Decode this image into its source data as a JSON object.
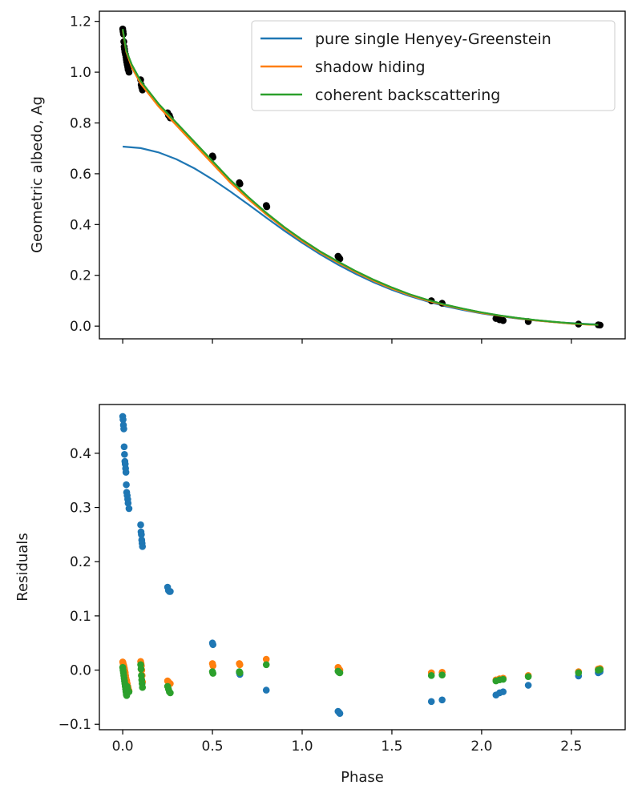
{
  "chart_data": [
    {
      "type": "line",
      "panel": "top",
      "title": "",
      "xlabel": "",
      "ylabel": "Geometric albedo, Ag",
      "xlim": [
        -0.13,
        2.8
      ],
      "ylim": [
        -0.05,
        1.24
      ],
      "xticks": [
        0.0,
        0.5,
        1.0,
        1.5,
        2.0,
        2.5
      ],
      "yticks": [
        0.0,
        0.2,
        0.4,
        0.6,
        0.8,
        1.0,
        1.2
      ],
      "ytick_labels": [
        "0.0",
        "0.2",
        "0.4",
        "0.6",
        "0.8",
        "1.0",
        "1.2"
      ],
      "legend_position": "top-right",
      "grid": false,
      "observations": {
        "color": "#000000",
        "x": [
          0.0,
          0.002,
          0.004,
          0.006,
          0.008,
          0.01,
          0.012,
          0.015,
          0.018,
          0.02,
          0.022,
          0.025,
          0.028,
          0.03,
          0.035,
          0.1,
          0.103,
          0.106,
          0.11,
          0.25,
          0.255,
          0.26,
          0.265,
          0.5,
          0.503,
          0.65,
          0.653,
          0.8,
          0.803,
          1.2,
          1.205,
          1.21,
          1.72,
          1.78,
          2.08,
          2.1,
          2.12,
          2.26,
          2.54,
          2.65,
          2.66
        ],
        "y": [
          1.17,
          1.16,
          1.15,
          1.12,
          1.1,
          1.09,
          1.08,
          1.07,
          1.06,
          1.05,
          1.04,
          1.03,
          1.02,
          1.01,
          1.0,
          0.97,
          0.95,
          0.94,
          0.93,
          0.84,
          0.83,
          0.83,
          0.82,
          0.67,
          0.665,
          0.565,
          0.56,
          0.475,
          0.47,
          0.275,
          0.27,
          0.265,
          0.1,
          0.09,
          0.03,
          0.025,
          0.022,
          0.018,
          0.008,
          0.005,
          0.004
        ]
      },
      "series": [
        {
          "name": "pure single Henyey-Greenstein",
          "color": "#1f77b4",
          "x": [
            0.0,
            0.1,
            0.2,
            0.3,
            0.4,
            0.5,
            0.6,
            0.7,
            0.8,
            0.9,
            1.0,
            1.1,
            1.2,
            1.3,
            1.4,
            1.5,
            1.6,
            1.7,
            1.8,
            1.9,
            2.0,
            2.1,
            2.2,
            2.3,
            2.4,
            2.5,
            2.6,
            2.65
          ],
          "y": [
            0.707,
            0.701,
            0.684,
            0.657,
            0.621,
            0.578,
            0.53,
            0.479,
            0.427,
            0.376,
            0.328,
            0.283,
            0.242,
            0.205,
            0.172,
            0.143,
            0.118,
            0.097,
            0.078,
            0.063,
            0.05,
            0.039,
            0.03,
            0.022,
            0.016,
            0.012,
            0.008,
            0.007
          ]
        },
        {
          "name": "shadow hiding",
          "color": "#ff7f0e",
          "x": [
            0.0,
            0.02,
            0.05,
            0.1,
            0.15,
            0.2,
            0.3,
            0.4,
            0.5,
            0.6,
            0.7,
            0.8,
            0.9,
            1.0,
            1.1,
            1.2,
            1.3,
            1.4,
            1.5,
            1.6,
            1.7,
            1.8,
            1.9,
            2.0,
            2.1,
            2.2,
            2.3,
            2.4,
            2.5,
            2.6,
            2.65
          ],
          "y": [
            1.165,
            1.08,
            1.02,
            0.955,
            0.91,
            0.865,
            0.79,
            0.715,
            0.64,
            0.565,
            0.5,
            0.44,
            0.385,
            0.335,
            0.29,
            0.25,
            0.212,
            0.178,
            0.148,
            0.122,
            0.1,
            0.082,
            0.066,
            0.052,
            0.041,
            0.031,
            0.023,
            0.016,
            0.01,
            0.006,
            0.005
          ]
        },
        {
          "name": "coherent backscattering",
          "color": "#2ca02c",
          "x": [
            0.0,
            0.02,
            0.05,
            0.1,
            0.15,
            0.2,
            0.3,
            0.4,
            0.5,
            0.6,
            0.7,
            0.8,
            0.9,
            1.0,
            1.1,
            1.2,
            1.3,
            1.4,
            1.5,
            1.6,
            1.7,
            1.8,
            1.9,
            2.0,
            2.1,
            2.2,
            2.3,
            2.4,
            2.5,
            2.6,
            2.65
          ],
          "y": [
            1.17,
            1.085,
            1.03,
            0.965,
            0.92,
            0.875,
            0.8,
            0.725,
            0.65,
            0.575,
            0.508,
            0.446,
            0.39,
            0.34,
            0.294,
            0.254,
            0.216,
            0.182,
            0.152,
            0.125,
            0.103,
            0.084,
            0.068,
            0.054,
            0.042,
            0.032,
            0.024,
            0.017,
            0.011,
            0.007,
            0.005
          ]
        }
      ]
    },
    {
      "type": "scatter",
      "panel": "bottom",
      "title": "",
      "xlabel": "Phase",
      "ylabel": "Residuals",
      "xlim": [
        -0.13,
        2.8
      ],
      "ylim": [
        -0.11,
        0.49
      ],
      "xticks": [
        0.0,
        0.5,
        1.0,
        1.5,
        2.0,
        2.5
      ],
      "xtick_labels": [
        "0.0",
        "0.5",
        "1.0",
        "1.5",
        "2.0",
        "2.5"
      ],
      "yticks": [
        -0.1,
        0.0,
        0.1,
        0.2,
        0.3,
        0.4
      ],
      "ytick_labels": [
        "−0.1",
        "0.0",
        "0.1",
        "0.2",
        "0.3",
        "0.4"
      ],
      "grid": false,
      "series": [
        {
          "name": "",
          "color": "#1f77b4",
          "x": [
            0.0,
            0.002,
            0.004,
            0.006,
            0.008,
            0.01,
            0.012,
            0.014,
            0.016,
            0.018,
            0.02,
            0.022,
            0.025,
            0.028,
            0.03,
            0.035,
            0.1,
            0.102,
            0.104,
            0.106,
            0.108,
            0.11,
            0.25,
            0.255,
            0.26,
            0.265,
            0.5,
            0.503,
            0.65,
            0.653,
            0.8,
            1.2,
            1.205,
            1.21,
            1.72,
            1.78,
            2.08,
            2.1,
            2.12,
            2.26,
            2.54,
            2.65,
            2.66
          ],
          "y": [
            0.468,
            0.462,
            0.452,
            0.445,
            0.412,
            0.398,
            0.385,
            0.38,
            0.372,
            0.365,
            0.342,
            0.328,
            0.322,
            0.315,
            0.308,
            0.298,
            0.268,
            0.255,
            0.25,
            0.24,
            0.234,
            0.228,
            0.153,
            0.147,
            0.145,
            0.145,
            0.05,
            0.047,
            -0.005,
            -0.008,
            -0.037,
            -0.076,
            -0.078,
            -0.08,
            -0.058,
            -0.055,
            -0.046,
            -0.042,
            -0.04,
            -0.028,
            -0.011,
            -0.005,
            -0.003
          ]
        },
        {
          "name": "",
          "color": "#ff7f0e",
          "x": [
            0.0,
            0.002,
            0.004,
            0.006,
            0.008,
            0.01,
            0.012,
            0.014,
            0.016,
            0.018,
            0.02,
            0.022,
            0.025,
            0.028,
            0.03,
            0.035,
            0.1,
            0.102,
            0.104,
            0.106,
            0.108,
            0.11,
            0.25,
            0.255,
            0.26,
            0.265,
            0.5,
            0.503,
            0.65,
            0.653,
            0.8,
            1.2,
            1.205,
            1.21,
            1.72,
            1.78,
            2.08,
            2.1,
            2.12,
            2.26,
            2.54,
            2.65,
            2.66
          ],
          "y": [
            0.015,
            0.013,
            0.01,
            0.008,
            0.005,
            0.002,
            -0.002,
            -0.005,
            -0.01,
            -0.015,
            -0.018,
            -0.02,
            -0.025,
            -0.03,
            -0.033,
            -0.038,
            0.016,
            0.012,
            0.008,
            0.0,
            -0.01,
            -0.022,
            -0.02,
            -0.022,
            -0.025,
            -0.025,
            0.012,
            0.008,
            0.012,
            0.01,
            0.02,
            0.005,
            0.002,
            0.0,
            -0.005,
            -0.004,
            -0.018,
            -0.016,
            -0.015,
            -0.01,
            -0.003,
            0.002,
            0.003
          ]
        },
        {
          "name": "",
          "color": "#2ca02c",
          "x": [
            0.0,
            0.002,
            0.004,
            0.006,
            0.008,
            0.01,
            0.012,
            0.014,
            0.016,
            0.018,
            0.02,
            0.022,
            0.025,
            0.028,
            0.03,
            0.035,
            0.1,
            0.102,
            0.104,
            0.106,
            0.108,
            0.11,
            0.25,
            0.255,
            0.26,
            0.265,
            0.5,
            0.503,
            0.65,
            0.653,
            0.8,
            1.2,
            1.205,
            1.21,
            1.72,
            1.78,
            2.08,
            2.1,
            2.12,
            2.26,
            2.54,
            2.65,
            2.66
          ],
          "y": [
            0.005,
            0.0,
            -0.005,
            -0.01,
            -0.015,
            -0.02,
            -0.025,
            -0.03,
            -0.035,
            -0.04,
            -0.045,
            -0.047,
            -0.03,
            -0.035,
            -0.038,
            -0.04,
            0.01,
            0.002,
            -0.01,
            -0.018,
            -0.025,
            -0.032,
            -0.03,
            -0.035,
            -0.04,
            -0.042,
            -0.003,
            -0.006,
            -0.003,
            -0.005,
            0.01,
            -0.002,
            -0.004,
            -0.005,
            -0.01,
            -0.009,
            -0.02,
            -0.018,
            -0.017,
            -0.012,
            -0.005,
            0.0,
            0.001
          ]
        }
      ]
    }
  ]
}
